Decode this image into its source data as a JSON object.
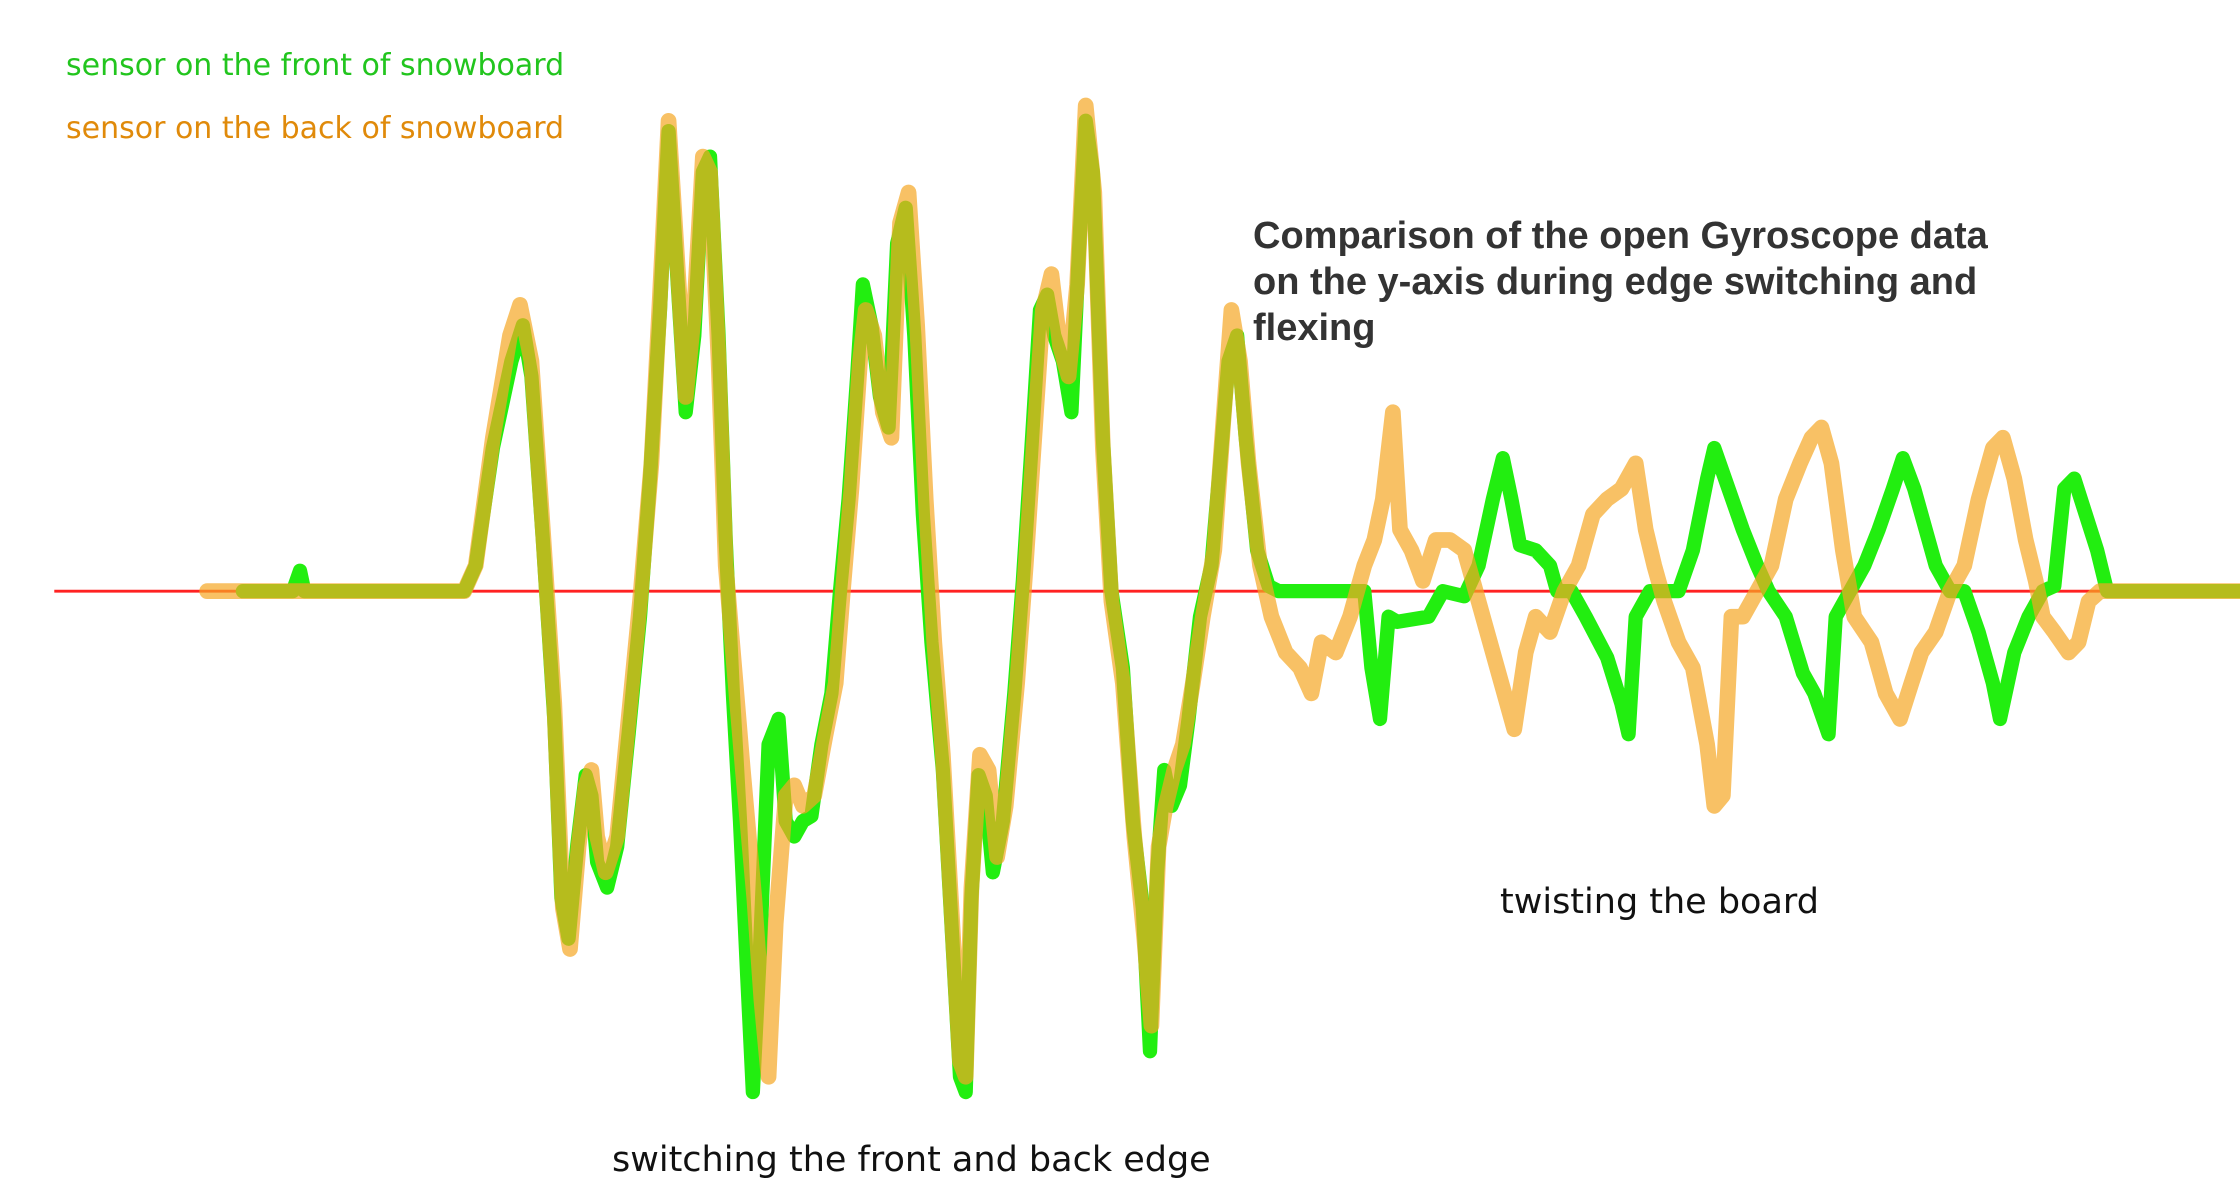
{
  "chart_data": {
    "type": "line",
    "title": "Comparison of the open Gyroscope data on the y-axis during edge switching and flexing",
    "xlabel": "",
    "ylabel": "",
    "xlim": [
      0,
      1568
    ],
    "ylim": [
      -1.0,
      1.0
    ],
    "grid": false,
    "legend_position": "top-left",
    "baseline": {
      "value": 0,
      "color": "#ff2222"
    },
    "annotations": [
      {
        "name": "annotation-switching",
        "text": "switching the front and back edge"
      },
      {
        "name": "annotation-twisting",
        "text": "twisting the board"
      }
    ],
    "series": [
      {
        "name": "sensor on the front of snowboard",
        "color": "#22ee10",
        "points": [
          [
            170,
            0
          ],
          [
            205,
            0
          ],
          [
            210,
            0.04
          ],
          [
            213,
            0
          ],
          [
            325,
            0
          ],
          [
            333,
            0.05
          ],
          [
            345,
            0.28
          ],
          [
            358,
            0.45
          ],
          [
            366,
            0.52
          ],
          [
            372,
            0.42
          ],
          [
            380,
            0.1
          ],
          [
            388,
            -0.25
          ],
          [
            393,
            -0.6
          ],
          [
            398,
            -0.68
          ],
          [
            404,
            -0.5
          ],
          [
            410,
            -0.36
          ],
          [
            414,
            -0.4
          ],
          [
            418,
            -0.53
          ],
          [
            425,
            -0.58
          ],
          [
            432,
            -0.5
          ],
          [
            440,
            -0.28
          ],
          [
            448,
            -0.05
          ],
          [
            455,
            0.22
          ],
          [
            462,
            0.55
          ],
          [
            468,
            0.9
          ],
          [
            474,
            0.62
          ],
          [
            480,
            0.35
          ],
          [
            486,
            0.5
          ],
          [
            492,
            0.82
          ],
          [
            497,
            0.85
          ],
          [
            503,
            0.5
          ],
          [
            508,
            0.1
          ],
          [
            513,
            -0.2
          ],
          [
            518,
            -0.45
          ],
          [
            523,
            -0.75
          ],
          [
            527,
            -0.98
          ],
          [
            532,
            -0.7
          ],
          [
            538,
            -0.3
          ],
          [
            545,
            -0.25
          ],
          [
            550,
            -0.45
          ],
          [
            556,
            -0.48
          ],
          [
            562,
            -0.45
          ],
          [
            568,
            -0.44
          ],
          [
            575,
            -0.3
          ],
          [
            582,
            -0.2
          ],
          [
            588,
            0
          ],
          [
            594,
            0.18
          ],
          [
            600,
            0.42
          ],
          [
            604,
            0.6
          ],
          [
            610,
            0.52
          ],
          [
            616,
            0.38
          ],
          [
            622,
            0.32
          ],
          [
            628,
            0.68
          ],
          [
            634,
            0.75
          ],
          [
            640,
            0.5
          ],
          [
            646,
            0.15
          ],
          [
            652,
            -0.1
          ],
          [
            660,
            -0.35
          ],
          [
            666,
            -0.65
          ],
          [
            672,
            -0.95
          ],
          [
            676,
            -0.98
          ],
          [
            680,
            -0.6
          ],
          [
            685,
            -0.36
          ],
          [
            690,
            -0.4
          ],
          [
            695,
            -0.55
          ],
          [
            702,
            -0.45
          ],
          [
            710,
            -0.2
          ],
          [
            716,
            0.02
          ],
          [
            722,
            0.28
          ],
          [
            728,
            0.55
          ],
          [
            733,
            0.58
          ],
          [
            738,
            0.5
          ],
          [
            744,
            0.45
          ],
          [
            750,
            0.35
          ],
          [
            755,
            0.65
          ],
          [
            760,
            0.92
          ],
          [
            765,
            0.82
          ],
          [
            772,
            0.3
          ],
          [
            778,
            0
          ],
          [
            786,
            -0.15
          ],
          [
            793,
            -0.45
          ],
          [
            800,
            -0.62
          ],
          [
            805,
            -0.9
          ],
          [
            810,
            -0.55
          ],
          [
            815,
            -0.35
          ],
          [
            820,
            -0.42
          ],
          [
            826,
            -0.38
          ],
          [
            832,
            -0.25
          ],
          [
            840,
            -0.05
          ],
          [
            848,
            0.05
          ],
          [
            855,
            0.28
          ],
          [
            860,
            0.45
          ],
          [
            866,
            0.5
          ],
          [
            872,
            0.3
          ],
          [
            880,
            0.08
          ],
          [
            888,
            0.01
          ],
          [
            895,
            0
          ],
          [
            955,
            0
          ],
          [
            960,
            -0.15
          ],
          [
            966,
            -0.25
          ],
          [
            972,
            -0.05
          ],
          [
            978,
            -0.06
          ],
          [
            1000,
            -0.05
          ],
          [
            1010,
            0
          ],
          [
            1025,
            -0.01
          ],
          [
            1035,
            0.05
          ],
          [
            1045,
            0.18
          ],
          [
            1052,
            0.26
          ],
          [
            1058,
            0.18
          ],
          [
            1064,
            0.09
          ],
          [
            1075,
            0.08
          ],
          [
            1085,
            0.05
          ],
          [
            1090,
            0
          ],
          [
            1100,
            0
          ],
          [
            1110,
            -0.05
          ],
          [
            1125,
            -0.13
          ],
          [
            1135,
            -0.22
          ],
          [
            1140,
            -0.28
          ],
          [
            1145,
            -0.05
          ],
          [
            1155,
            0
          ],
          [
            1175,
            0
          ],
          [
            1185,
            0.08
          ],
          [
            1195,
            0.22
          ],
          [
            1200,
            0.28
          ],
          [
            1210,
            0.2
          ],
          [
            1220,
            0.12
          ],
          [
            1230,
            0.05
          ],
          [
            1238,
            0
          ],
          [
            1250,
            -0.05
          ],
          [
            1262,
            -0.16
          ],
          [
            1270,
            -0.2
          ],
          [
            1280,
            -0.28
          ],
          [
            1285,
            -0.05
          ],
          [
            1295,
            0
          ],
          [
            1305,
            0.05
          ],
          [
            1315,
            0.12
          ],
          [
            1325,
            0.2
          ],
          [
            1332,
            0.26
          ],
          [
            1340,
            0.2
          ],
          [
            1348,
            0.12
          ],
          [
            1355,
            0.05
          ],
          [
            1365,
            0
          ],
          [
            1375,
            0
          ],
          [
            1385,
            -0.08
          ],
          [
            1395,
            -0.18
          ],
          [
            1400,
            -0.25
          ],
          [
            1410,
            -0.12
          ],
          [
            1420,
            -0.05
          ],
          [
            1430,
            0
          ],
          [
            1438,
            0.01
          ],
          [
            1445,
            0.2
          ],
          [
            1452,
            0.22
          ],
          [
            1460,
            0.15
          ],
          [
            1468,
            0.08
          ],
          [
            1475,
            0
          ],
          [
            1568,
            0
          ]
        ]
      },
      {
        "name": "sensor on the back of snowboard",
        "color": "#f5a623",
        "points": [
          [
            145,
            0
          ],
          [
            325,
            0
          ],
          [
            333,
            0.05
          ],
          [
            345,
            0.3
          ],
          [
            357,
            0.5
          ],
          [
            364,
            0.56
          ],
          [
            372,
            0.45
          ],
          [
            380,
            0.12
          ],
          [
            388,
            -0.22
          ],
          [
            394,
            -0.62
          ],
          [
            399,
            -0.7
          ],
          [
            405,
            -0.5
          ],
          [
            410,
            -0.38
          ],
          [
            414,
            -0.35
          ],
          [
            418,
            -0.48
          ],
          [
            424,
            -0.55
          ],
          [
            432,
            -0.48
          ],
          [
            440,
            -0.25
          ],
          [
            448,
            -0.02
          ],
          [
            456,
            0.25
          ],
          [
            462,
            0.58
          ],
          [
            468,
            0.92
          ],
          [
            474,
            0.65
          ],
          [
            480,
            0.38
          ],
          [
            486,
            0.55
          ],
          [
            492,
            0.85
          ],
          [
            497,
            0.82
          ],
          [
            503,
            0.45
          ],
          [
            508,
            0.05
          ],
          [
            514,
            -0.15
          ],
          [
            520,
            -0.35
          ],
          [
            528,
            -0.6
          ],
          [
            533,
            -0.8
          ],
          [
            538,
            -0.95
          ],
          [
            543,
            -0.65
          ],
          [
            550,
            -0.4
          ],
          [
            556,
            -0.38
          ],
          [
            562,
            -0.42
          ],
          [
            570,
            -0.4
          ],
          [
            578,
            -0.28
          ],
          [
            585,
            -0.18
          ],
          [
            590,
            0
          ],
          [
            596,
            0.2
          ],
          [
            602,
            0.45
          ],
          [
            606,
            0.55
          ],
          [
            612,
            0.5
          ],
          [
            618,
            0.35
          ],
          [
            624,
            0.3
          ],
          [
            630,
            0.72
          ],
          [
            636,
            0.78
          ],
          [
            642,
            0.52
          ],
          [
            648,
            0.18
          ],
          [
            654,
            -0.1
          ],
          [
            660,
            -0.32
          ],
          [
            666,
            -0.62
          ],
          [
            672,
            -0.92
          ],
          [
            676,
            -0.95
          ],
          [
            680,
            -0.58
          ],
          [
            686,
            -0.32
          ],
          [
            692,
            -0.35
          ],
          [
            698,
            -0.52
          ],
          [
            704,
            -0.42
          ],
          [
            712,
            -0.18
          ],
          [
            718,
            0.05
          ],
          [
            724,
            0.3
          ],
          [
            730,
            0.55
          ],
          [
            736,
            0.62
          ],
          [
            742,
            0.48
          ],
          [
            748,
            0.42
          ],
          [
            754,
            0.6
          ],
          [
            760,
            0.95
          ],
          [
            766,
            0.78
          ],
          [
            772,
            0.28
          ],
          [
            778,
            -0.02
          ],
          [
            786,
            -0.18
          ],
          [
            794,
            -0.48
          ],
          [
            801,
            -0.68
          ],
          [
            806,
            -0.85
          ],
          [
            811,
            -0.5
          ],
          [
            816,
            -0.42
          ],
          [
            822,
            -0.35
          ],
          [
            828,
            -0.3
          ],
          [
            835,
            -0.18
          ],
          [
            842,
            -0.05
          ],
          [
            850,
            0.08
          ],
          [
            856,
            0.32
          ],
          [
            862,
            0.55
          ],
          [
            868,
            0.45
          ],
          [
            874,
            0.25
          ],
          [
            882,
            0.05
          ],
          [
            890,
            -0.05
          ],
          [
            900,
            -0.12
          ],
          [
            910,
            -0.15
          ],
          [
            918,
            -0.2
          ],
          [
            925,
            -0.1
          ],
          [
            935,
            -0.12
          ],
          [
            945,
            -0.05
          ],
          [
            955,
            0.05
          ],
          [
            962,
            0.1
          ],
          [
            968,
            0.18
          ],
          [
            975,
            0.35
          ],
          [
            980,
            0.12
          ],
          [
            988,
            0.08
          ],
          [
            996,
            0.02
          ],
          [
            1005,
            0.1
          ],
          [
            1015,
            0.1
          ],
          [
            1025,
            0.08
          ],
          [
            1035,
            -0.02
          ],
          [
            1045,
            -0.12
          ],
          [
            1055,
            -0.22
          ],
          [
            1060,
            -0.27
          ],
          [
            1068,
            -0.12
          ],
          [
            1075,
            -0.05
          ],
          [
            1085,
            -0.08
          ],
          [
            1095,
            0
          ],
          [
            1105,
            0.05
          ],
          [
            1115,
            0.15
          ],
          [
            1125,
            0.18
          ],
          [
            1135,
            0.2
          ],
          [
            1145,
            0.25
          ],
          [
            1152,
            0.12
          ],
          [
            1158,
            0.05
          ],
          [
            1165,
            -0.02
          ],
          [
            1175,
            -0.1
          ],
          [
            1185,
            -0.15
          ],
          [
            1195,
            -0.3
          ],
          [
            1200,
            -0.42
          ],
          [
            1206,
            -0.4
          ],
          [
            1212,
            -0.05
          ],
          [
            1220,
            -0.05
          ],
          [
            1230,
            0
          ],
          [
            1240,
            0.05
          ],
          [
            1250,
            0.18
          ],
          [
            1260,
            0.25
          ],
          [
            1268,
            0.3
          ],
          [
            1275,
            0.32
          ],
          [
            1282,
            0.25
          ],
          [
            1290,
            0.08
          ],
          [
            1298,
            -0.05
          ],
          [
            1310,
            -0.1
          ],
          [
            1320,
            -0.2
          ],
          [
            1330,
            -0.25
          ],
          [
            1338,
            -0.18
          ],
          [
            1345,
            -0.12
          ],
          [
            1355,
            -0.08
          ],
          [
            1365,
            0
          ],
          [
            1375,
            0.05
          ],
          [
            1385,
            0.18
          ],
          [
            1395,
            0.28
          ],
          [
            1402,
            0.3
          ],
          [
            1410,
            0.22
          ],
          [
            1418,
            0.1
          ],
          [
            1425,
            0.02
          ],
          [
            1430,
            -0.05
          ],
          [
            1438,
            -0.08
          ],
          [
            1448,
            -0.12
          ],
          [
            1455,
            -0.1
          ],
          [
            1462,
            -0.02
          ],
          [
            1470,
            0
          ],
          [
            1568,
            0
          ]
        ]
      }
    ]
  }
}
